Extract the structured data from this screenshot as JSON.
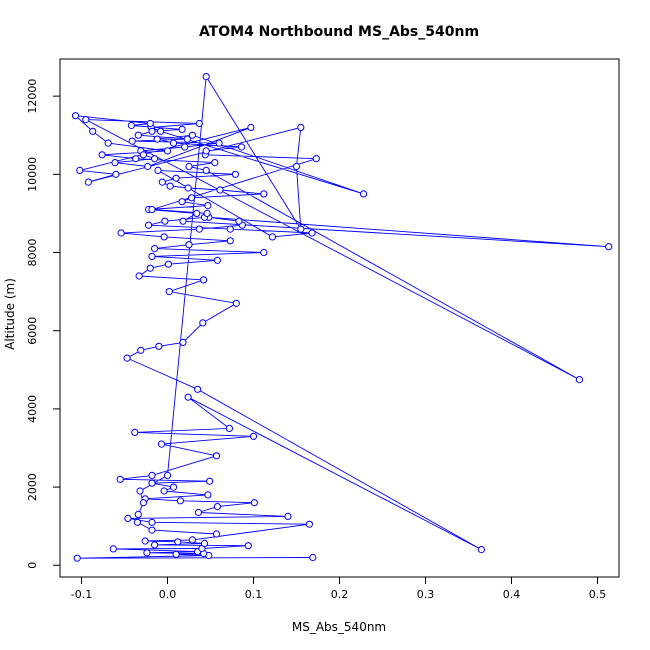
{
  "chart_data": {
    "type": "scatter",
    "style": "points-connected-by-lines",
    "title": "ATOM4 Northbound MS_Abs_540nm",
    "xlabel": "MS_Abs_540nm",
    "ylabel": "Altitude (m)",
    "xlim": [
      -0.125,
      0.525
    ],
    "ylim": [
      -300,
      12950
    ],
    "x_ticks": [
      -0.1,
      0.0,
      0.1,
      0.2,
      0.3,
      0.4,
      0.5
    ],
    "x_tick_labels": [
      "-0.1",
      "0.0",
      "0.1",
      "0.2",
      "0.3",
      "0.4",
      "0.5"
    ],
    "y_ticks": [
      0,
      2000,
      4000,
      6000,
      8000,
      10000,
      12000
    ],
    "y_tick_labels": [
      "0",
      "2000",
      "4000",
      "6000",
      "8000",
      "10000",
      "12000"
    ],
    "grid": false,
    "colors": {
      "series": "#0000ff",
      "axis": "#000000",
      "background": "#ffffff"
    },
    "series": [
      {
        "x": [
          0.169,
          -0.105,
          0.048,
          0.01,
          0.042,
          -0.024,
          0.035,
          -0.063,
          0.04,
          0.094,
          -0.015,
          0.043,
          0.012,
          -0.026,
          0.029,
          0.165,
          -0.018,
          -0.046,
          0.14,
          0.036,
          0.058,
          0.101,
          0.015,
          -0.026,
          0.047,
          -0.004,
          0.007,
          -0.018,
          0.049,
          -0.055,
          -0.018,
          0.057,
          -0.007,
          0.1,
          -0.038,
          0.072,
          0.024,
          0.365,
          0.035,
          -0.047,
          -0.031,
          -0.01,
          0.018,
          0.041,
          0.08,
          0.002,
          0.042,
          -0.033,
          -0.02,
          0.001,
          0.058,
          -0.018,
          0.112,
          -0.015,
          0.025,
          0.073,
          -0.004,
          -0.054,
          0.037,
          0.087,
          0.083,
          0.048,
          0.513,
          0.018,
          0.034,
          -0.022,
          0.047,
          0.017,
          0.028,
          0.112,
          0.061,
          0.024,
          0.003,
          -0.006,
          0.01,
          0.079,
          -0.011,
          0.122,
          0.168,
          0.073,
          -0.022,
          -0.003,
          0.043,
          0.046,
          -0.018,
          0.173,
          0.044,
          0.045,
          0.086,
          0.007,
          -0.012,
          0.029,
          0.228,
          -0.008,
          -0.019,
          0.037,
          -0.095,
          0.479,
          0.045,
          0.025,
          0.055,
          -0.037,
          -0.076,
          0.0,
          -0.069,
          -0.087,
          -0.107,
          -0.02,
          -0.042,
          0.017,
          -0.018,
          -0.034,
          0.023,
          -0.041,
          0.06,
          0.02,
          -0.031,
          -0.028,
          -0.015,
          -0.061,
          -0.023,
          0.097,
          -0.102,
          -0.06,
          -0.092,
          0.155,
          0.15,
          0.155,
          0.045,
          0.0,
          -0.032,
          -0.028,
          -0.034,
          -0.035,
          -0.018,
          0.057
        ],
        "y": [
          200,
          180,
          250,
          280,
          300,
          320,
          350,
          420,
          430,
          500,
          520,
          560,
          600,
          620,
          650,
          1050,
          1100,
          1200,
          1250,
          1350,
          1500,
          1600,
          1650,
          1700,
          1800,
          1900,
          2000,
          2100,
          2150,
          2200,
          2300,
          2800,
          3100,
          3300,
          3400,
          3500,
          4300,
          400,
          4500,
          5300,
          5500,
          5600,
          5700,
          6200,
          6700,
          7000,
          7300,
          7400,
          7600,
          7700,
          7800,
          7900,
          8000,
          8100,
          8200,
          8300,
          8400,
          8500,
          8600,
          8700,
          8800,
          8900,
          8150,
          8800,
          9000,
          9100,
          9200,
          9300,
          9400,
          9500,
          9600,
          9650,
          9700,
          9800,
          9900,
          10000,
          10100,
          8400,
          8500,
          8600,
          8700,
          8800,
          8900,
          9000,
          9100,
          10400,
          10500,
          10600,
          10700,
          10800,
          10900,
          11000,
          9500,
          11100,
          11200,
          11300,
          11400,
          4750,
          10100,
          10200,
          10300,
          10400,
          10500,
          10600,
          10800,
          11100,
          11500,
          11300,
          11250,
          11150,
          11100,
          11000,
          10900,
          10850,
          10800,
          10700,
          10600,
          10500,
          10400,
          10300,
          10200,
          11200,
          10100,
          10000,
          9800,
          11200,
          10200,
          8600,
          12500,
          2300,
          1900,
          1600,
          1300,
          1100,
          900,
          800
        ]
      }
    ]
  }
}
